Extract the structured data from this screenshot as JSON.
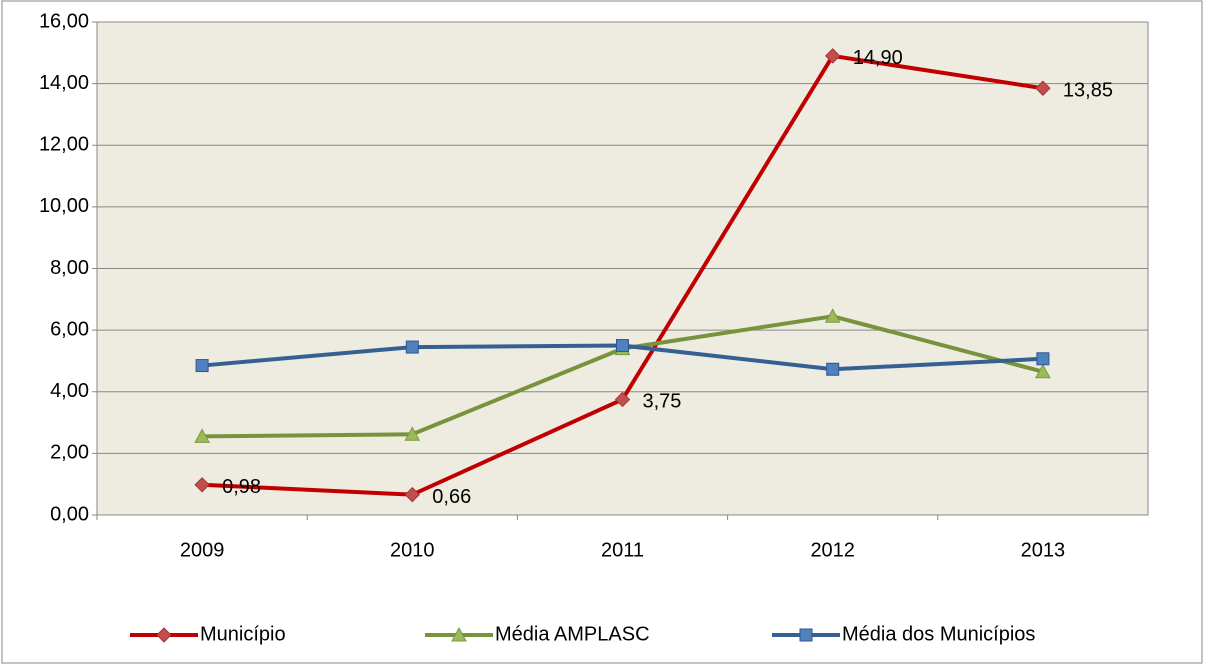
{
  "chart_data": {
    "type": "line",
    "categories": [
      "2009",
      "2010",
      "2011",
      "2012",
      "2013"
    ],
    "series": [
      {
        "name": "Município",
        "color": "#c00000",
        "marker_color": "#c0504d",
        "marker": "diamond",
        "values": [
          0.98,
          0.66,
          3.75,
          14.9,
          13.85
        ],
        "value_labels": [
          "0,98",
          "0,66",
          "3,75",
          "14,90",
          "13,85"
        ]
      },
      {
        "name": "Média AMPLASC",
        "color": "#77933c",
        "marker_color": "#9bbb59",
        "marker": "triangle",
        "values": [
          2.55,
          2.62,
          5.4,
          6.45,
          4.65
        ]
      },
      {
        "name": "Média dos Municípios",
        "color": "#376092",
        "marker_color": "#4f81bd",
        "marker": "square",
        "values": [
          4.85,
          5.45,
          5.5,
          4.73,
          5.07
        ]
      }
    ],
    "ylim": [
      0,
      16
    ],
    "yticks": [
      {
        "value": 0,
        "label": "0,00"
      },
      {
        "value": 2,
        "label": "2,00"
      },
      {
        "value": 4,
        "label": "4,00"
      },
      {
        "value": 6,
        "label": "6,00"
      },
      {
        "value": 8,
        "label": "8,00"
      },
      {
        "value": 10,
        "label": "10,00"
      },
      {
        "value": 12,
        "label": "12,00"
      },
      {
        "value": 14,
        "label": "14,00"
      },
      {
        "value": 16,
        "label": "16,00"
      }
    ],
    "grid": true,
    "legend": "bottom",
    "plot_background": "#eeece1"
  }
}
